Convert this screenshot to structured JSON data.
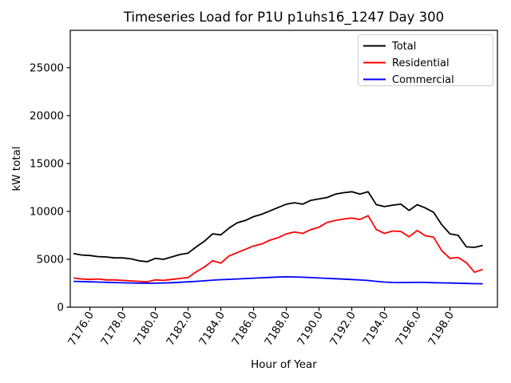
{
  "chart": {
    "title": "Timeseries Load for P1U p1uhs16_1247  Day 300",
    "xlabel": "Hour of Year",
    "ylabel": "kW total"
  },
  "legend": {
    "position": "upper right",
    "entries": [
      {
        "label": "Total",
        "color": "#000000"
      },
      {
        "label": "Residential",
        "color": "#ff0000"
      },
      {
        "label": "Commercial",
        "color": "#0000ff"
      }
    ]
  },
  "chart_data": {
    "type": "line",
    "title": "Timeseries Load for P1U p1uhs16_1247  Day 300",
    "xlabel": "Hour of Year",
    "ylabel": "kW total",
    "grid": false,
    "legend_position": "upper right",
    "xlim": [
      7174.8,
      7200.9
    ],
    "ylim": [
      0,
      28900
    ],
    "xticks": [
      7176,
      7178,
      7180,
      7182,
      7184,
      7186,
      7188,
      7190,
      7192,
      7194,
      7196,
      7198
    ],
    "xtick_labels": [
      "7176.0",
      "7178.0",
      "7180.0",
      "7182.0",
      "7184.0",
      "7186.0",
      "7188.0",
      "7190.0",
      "7192.0",
      "7194.0",
      "7196.0",
      "7198.0"
    ],
    "yticks": [
      0,
      5000,
      10000,
      15000,
      20000,
      25000
    ],
    "x": [
      7175.0,
      7175.5,
      7176.0,
      7176.5,
      7177.0,
      7177.5,
      7178.0,
      7178.5,
      7179.0,
      7179.5,
      7180.0,
      7180.5,
      7181.0,
      7181.5,
      7182.0,
      7182.5,
      7183.0,
      7183.5,
      7184.0,
      7184.5,
      7185.0,
      7185.5,
      7186.0,
      7186.5,
      7187.0,
      7187.5,
      7188.0,
      7188.5,
      7189.0,
      7189.5,
      7190.0,
      7190.5,
      7191.0,
      7191.5,
      7192.0,
      7192.5,
      7193.0,
      7193.5,
      7194.0,
      7194.5,
      7195.0,
      7195.5,
      7196.0,
      7196.5,
      7197.0,
      7197.5,
      7198.0,
      7198.5,
      7199.0,
      7199.5,
      7200.0
    ],
    "series": [
      {
        "name": "Total",
        "color": "#000000",
        "values": [
          5600,
          5450,
          5400,
          5280,
          5250,
          5150,
          5150,
          5050,
          4850,
          4750,
          5100,
          5000,
          5250,
          5500,
          5650,
          6300,
          6900,
          7650,
          7550,
          8250,
          8800,
          9050,
          9450,
          9700,
          10050,
          10400,
          10750,
          10900,
          10750,
          11150,
          11300,
          11450,
          11800,
          11950,
          12050,
          11800,
          12050,
          10700,
          10500,
          10650,
          10750,
          10100,
          10700,
          10350,
          9900,
          8600,
          7650,
          7500,
          6300,
          6250,
          6450
        ]
      },
      {
        "name": "Residential",
        "color": "#ff0000",
        "values": [
          3050,
          2950,
          2900,
          2950,
          2850,
          2850,
          2800,
          2750,
          2700,
          2650,
          2850,
          2800,
          2900,
          3000,
          3100,
          3700,
          4200,
          4850,
          4600,
          5350,
          5700,
          6050,
          6400,
          6600,
          7000,
          7250,
          7650,
          7850,
          7700,
          8100,
          8350,
          8850,
          9050,
          9200,
          9300,
          9150,
          9550,
          8100,
          7700,
          7950,
          7900,
          7350,
          8000,
          7450,
          7300,
          5900,
          5100,
          5200,
          4650,
          3650,
          3950
        ]
      },
      {
        "name": "Commercial",
        "color": "#0000ff",
        "values": [
          2700,
          2670,
          2650,
          2620,
          2600,
          2570,
          2550,
          2530,
          2510,
          2500,
          2510,
          2530,
          2560,
          2600,
          2650,
          2700,
          2760,
          2820,
          2870,
          2910,
          2950,
          2990,
          3030,
          3070,
          3110,
          3150,
          3170,
          3160,
          3130,
          3090,
          3050,
          3010,
          2970,
          2930,
          2890,
          2840,
          2790,
          2700,
          2620,
          2580,
          2570,
          2580,
          2590,
          2580,
          2560,
          2540,
          2520,
          2500,
          2480,
          2460,
          2450
        ]
      }
    ]
  }
}
